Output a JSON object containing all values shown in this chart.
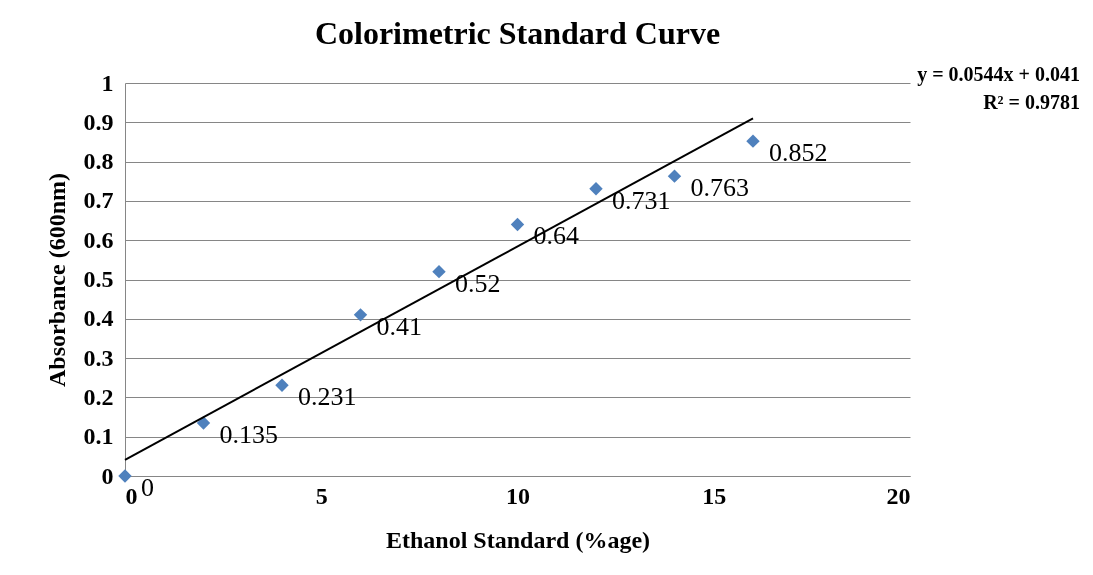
{
  "chart_data": {
    "type": "scatter",
    "title": "Colorimetric Standard Curve",
    "xlabel": "Ethanol Standard (%age)",
    "ylabel": "Absorbance (600nm)",
    "annotations": [
      "y = 0.0544x + 0.041",
      "R² = 0.9781"
    ],
    "series": [
      {
        "type": "scatter",
        "color": "#4f81bd",
        "marker": "diamond",
        "data_labels": true,
        "x": [
          0,
          2,
          4,
          6,
          8,
          10,
          12,
          14,
          16
        ],
        "values": [
          0,
          0.135,
          0.231,
          0.41,
          0.52,
          0.64,
          0.731,
          0.763,
          0.852
        ]
      },
      {
        "type": "line",
        "color": "#000000",
        "x": [
          0,
          16
        ],
        "values": [
          0.041,
          0.91
        ]
      }
    ],
    "xlim": [
      0,
      20
    ],
    "xticks": [
      0,
      5,
      10,
      15,
      20
    ],
    "ylim": [
      0,
      1
    ],
    "yticks": [
      0,
      0.1,
      0.2,
      0.3,
      0.4,
      0.5,
      0.6,
      0.7,
      0.8,
      0.9,
      1
    ],
    "grid": "y"
  }
}
